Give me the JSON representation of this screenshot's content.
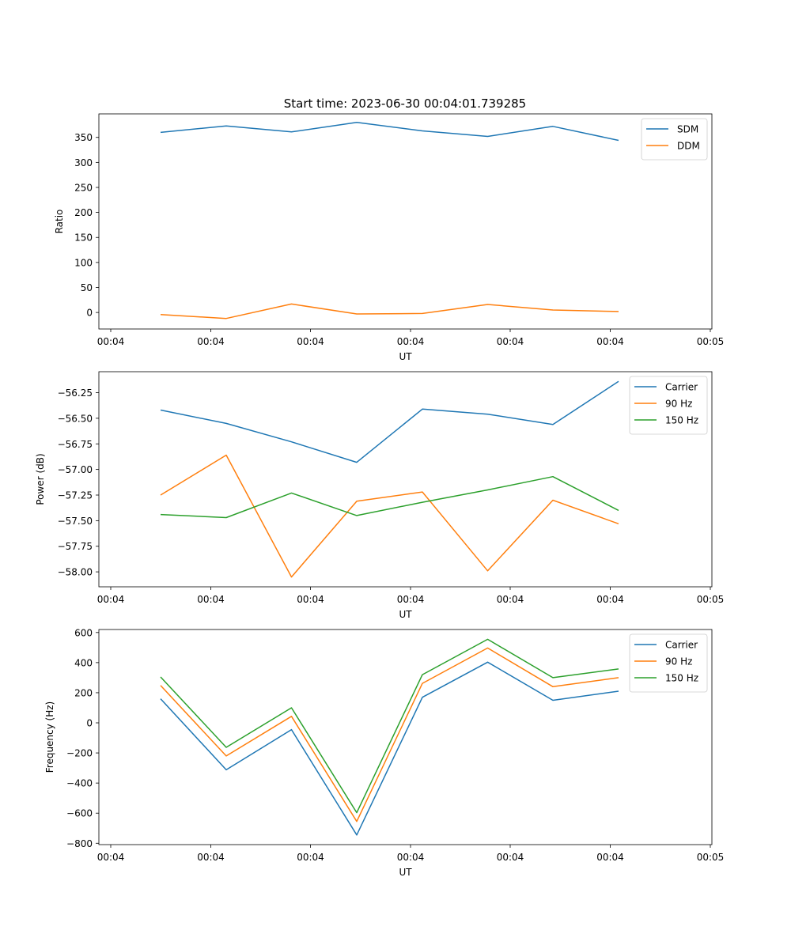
{
  "figure": {
    "title": "Start time: 2023-06-30 00:04:01.739285"
  },
  "colors": {
    "blue": "#1f77b4",
    "orange": "#ff7f0e",
    "green": "#2ca02c"
  },
  "chart_data": [
    {
      "type": "line",
      "title": "Start time: 2023-06-30 00:04:01.739285",
      "xlabel": "UT",
      "ylabel": "Ratio",
      "x_tick_labels": [
        "00:04",
        "00:04",
        "00:04",
        "00:04",
        "00:04",
        "00:04",
        "00:04",
        "00:05"
      ],
      "y_ticks": [
        0,
        50,
        100,
        150,
        200,
        250,
        300,
        350
      ],
      "ylim": [
        -33,
        397
      ],
      "x_count": 8,
      "legend_position": "upper right",
      "series": [
        {
          "name": "SDM",
          "color": "#1f77b4",
          "values": [
            360,
            373,
            361,
            380,
            363,
            352,
            372,
            344
          ]
        },
        {
          "name": "DDM",
          "color": "#ff7f0e",
          "values": [
            -4,
            -12,
            17,
            -3,
            -2,
            16,
            5,
            2
          ]
        }
      ]
    },
    {
      "type": "line",
      "title": "",
      "xlabel": "UT",
      "ylabel": "Power (dB)",
      "x_tick_labels": [
        "00:04",
        "00:04",
        "00:04",
        "00:04",
        "00:04",
        "00:04",
        "00:04",
        "00:05"
      ],
      "y_ticks": [
        -58.0,
        -57.75,
        -57.5,
        -57.25,
        -57.0,
        -56.75,
        -56.5,
        -56.25
      ],
      "y_tick_labels": [
        "−58.00",
        "−57.75",
        "−57.50",
        "−57.25",
        "−57.00",
        "−56.75",
        "−56.50",
        "−56.25"
      ],
      "ylim": [
        -58.146,
        -56.045
      ],
      "x_count": 8,
      "legend_position": "upper right",
      "series": [
        {
          "name": "Carrier",
          "color": "#1f77b4",
          "values": [
            -56.42,
            -56.55,
            -56.73,
            -56.93,
            -56.41,
            -56.46,
            -56.56,
            -56.14
          ]
        },
        {
          "name": "90 Hz",
          "color": "#ff7f0e",
          "values": [
            -57.25,
            -56.86,
            -58.05,
            -57.31,
            -57.22,
            -57.99,
            -57.3,
            -57.53
          ]
        },
        {
          "name": "150 Hz",
          "color": "#2ca02c",
          "values": [
            -57.44,
            -57.47,
            -57.23,
            -57.45,
            -57.32,
            -57.2,
            -57.07,
            -57.4
          ]
        }
      ]
    },
    {
      "type": "line",
      "title": "",
      "xlabel": "UT",
      "ylabel": "Frequency (Hz)",
      "x_tick_labels": [
        "00:04",
        "00:04",
        "00:04",
        "00:04",
        "00:04",
        "00:04",
        "00:04",
        "00:05"
      ],
      "y_ticks": [
        -800,
        -600,
        -400,
        -200,
        0,
        200,
        400,
        600
      ],
      "y_tick_labels": [
        "−800",
        "−600",
        "−400",
        "−200",
        "0",
        "200",
        "400",
        "600"
      ],
      "ylim": [
        -809,
        620
      ],
      "x_count": 8,
      "legend_position": "upper right",
      "series": [
        {
          "name": "Carrier",
          "color": "#1f77b4",
          "values": [
            160,
            -312,
            -45,
            -745,
            170,
            403,
            150,
            210
          ]
        },
        {
          "name": "90 Hz",
          "color": "#ff7f0e",
          "values": [
            248,
            -220,
            43,
            -655,
            262,
            497,
            240,
            300
          ]
        },
        {
          "name": "150 Hz",
          "color": "#2ca02c",
          "values": [
            305,
            -163,
            100,
            -597,
            320,
            555,
            300,
            358
          ]
        }
      ]
    }
  ]
}
